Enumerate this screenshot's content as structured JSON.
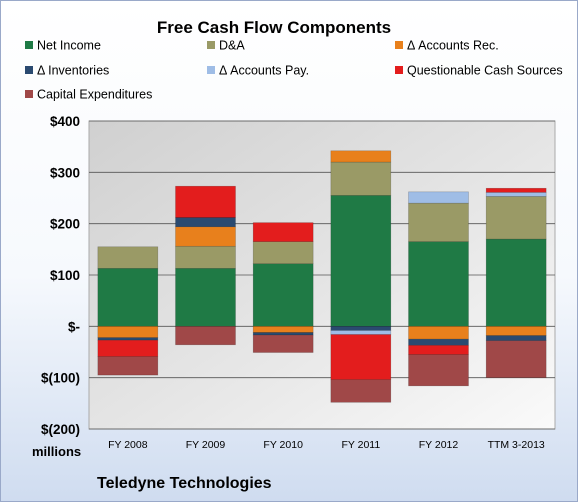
{
  "chart_data": {
    "type": "bar",
    "stacked": true,
    "title": "Free Cash Flow Components",
    "categories": [
      "FY 2008",
      "FY 2009",
      "FY 2010",
      "FY 2011",
      "FY 2012",
      "TTM 3-2013"
    ],
    "y_tick_labels": [
      "$(200)",
      "$(100)",
      "$-",
      "$100",
      "$200",
      "$300",
      "$400"
    ],
    "y_ticks": [
      -200,
      -100,
      0,
      100,
      200,
      300,
      400
    ],
    "ylim": [
      -200,
      400
    ],
    "ylabel": "millions",
    "grid": true,
    "legend_position": "top",
    "footer": "Teledyne Technologies",
    "series": [
      {
        "name": "Net Income",
        "color": "#1f7a45",
        "values": [
          113,
          113,
          122,
          255,
          165,
          170
        ]
      },
      {
        "name": "D&A",
        "color": "#9a9a66",
        "values": [
          42,
          43,
          43,
          65,
          75,
          83
        ]
      },
      {
        "name": "Δ Accounts Rec.",
        "color": "#e8801c",
        "values": [
          -22,
          38,
          -12,
          22,
          -25,
          -18
        ]
      },
      {
        "name": "Δ Inventories",
        "color": "#2a4a70",
        "values": [
          -5,
          18,
          -5,
          -8,
          -12,
          -10
        ]
      },
      {
        "name": "Δ Accounts Pay.",
        "color": "#9fbde6",
        "values": [
          0,
          0,
          0,
          -8,
          22,
          8
        ]
      },
      {
        "name": "Questionable Cash Sources",
        "color": "#e31d1d",
        "values": [
          -32,
          61,
          37,
          -88,
          -18,
          8
        ]
      },
      {
        "name": "Capital Expenditures",
        "color": "#a04848",
        "values": [
          -36,
          -36,
          -34,
          -44,
          -61,
          -72
        ]
      }
    ]
  }
}
